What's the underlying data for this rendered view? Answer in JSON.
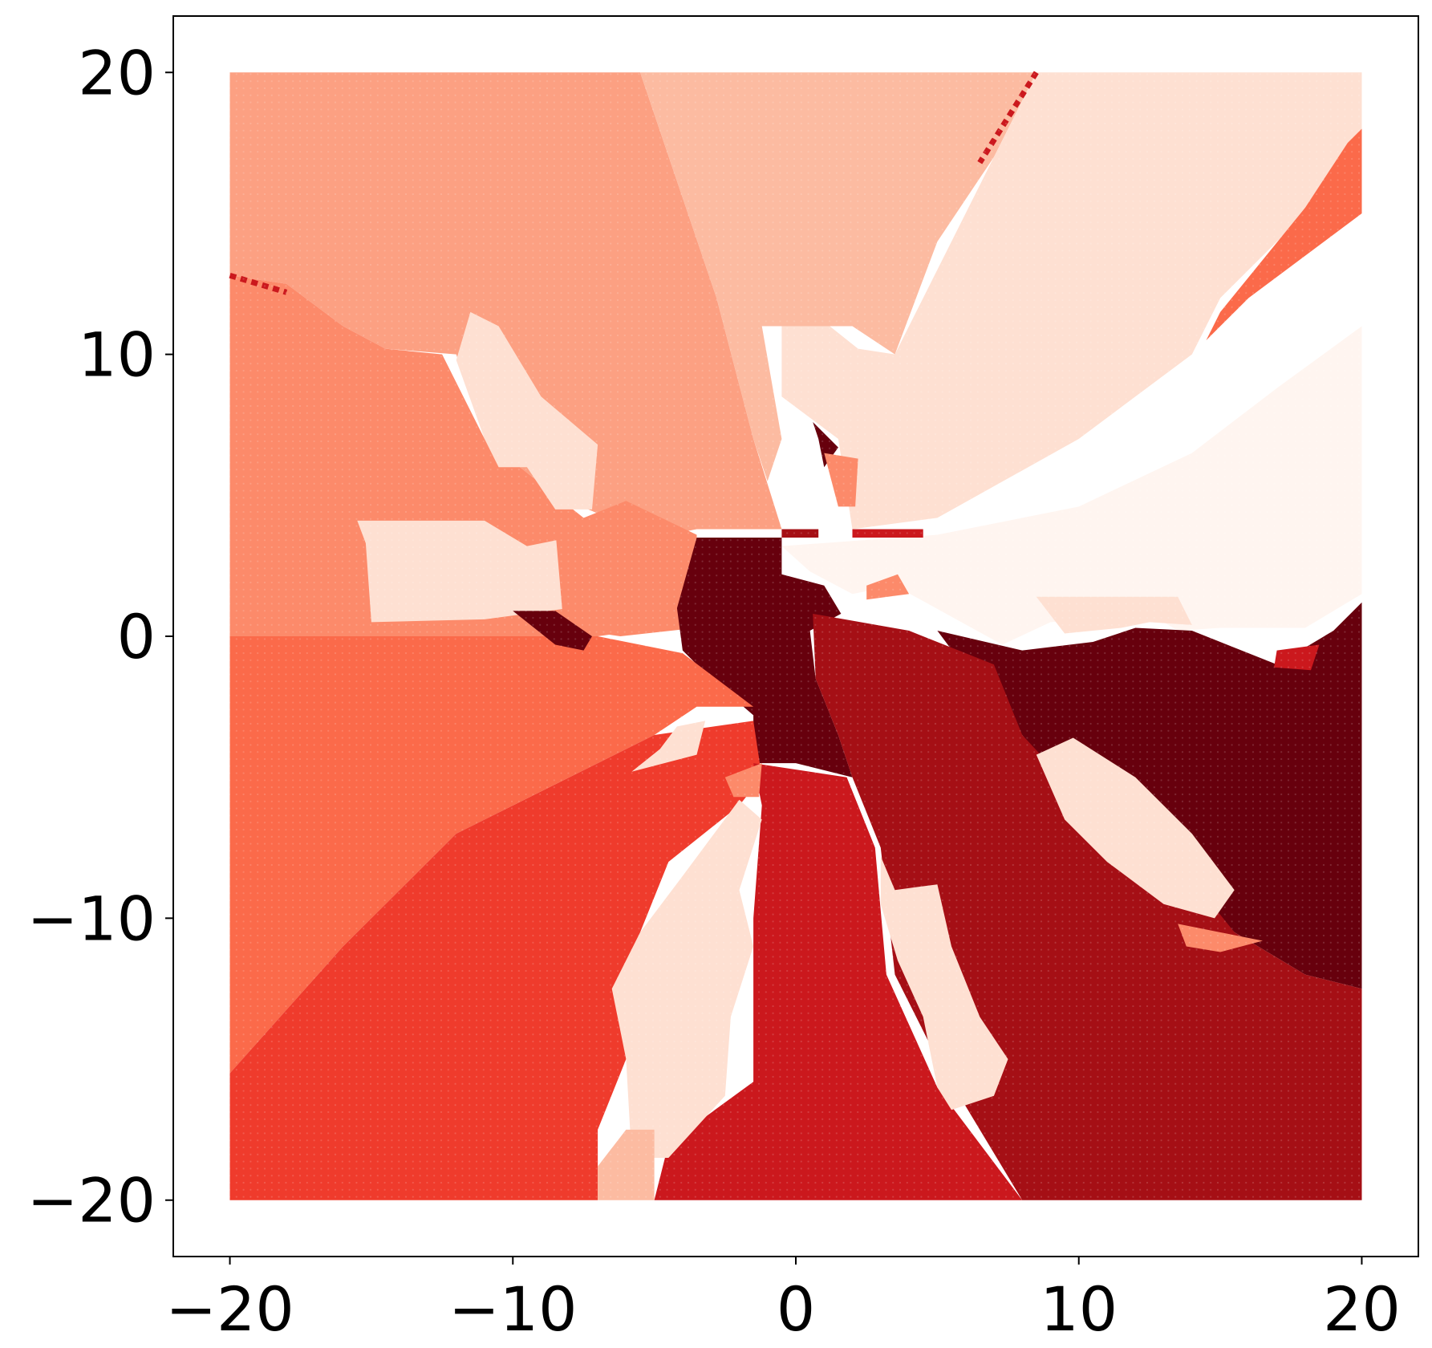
{
  "chart_data": {
    "type": "scatter",
    "title": "",
    "xlabel": "",
    "ylabel": "",
    "xlim": [
      -22,
      22
    ],
    "ylim": [
      -22,
      22
    ],
    "grid": false,
    "colormap": "Reds",
    "x_ticks": [
      {
        "value": -20,
        "label": "−20"
      },
      {
        "value": -10,
        "label": "−10"
      },
      {
        "value": 0,
        "label": "0"
      },
      {
        "value": 10,
        "label": "10"
      },
      {
        "value": 20,
        "label": "20"
      }
    ],
    "y_ticks": [
      {
        "value": 20,
        "label": "20"
      },
      {
        "value": 10,
        "label": "10"
      },
      {
        "value": 0,
        "label": "0"
      },
      {
        "value": -10,
        "label": "−10"
      },
      {
        "value": -20,
        "label": "−20"
      }
    ],
    "points_grid": {
      "x_range": [
        -20,
        20
      ],
      "y_range": [
        -20,
        20
      ]
    },
    "regions": [
      {
        "color": "#fca082",
        "polygon": [
          [
            -20,
            20
          ],
          [
            -5.5,
            20
          ],
          [
            -2.8,
            12
          ],
          [
            -1.5,
            7
          ],
          [
            -0.5,
            3.8
          ],
          [
            -3.5,
            3.8
          ],
          [
            -5,
            3.5
          ],
          [
            -8.5,
            5
          ],
          [
            -11,
            7
          ],
          [
            -12,
            10
          ],
          [
            -14.5,
            10.2
          ],
          [
            -16,
            11
          ],
          [
            -18,
            12.5
          ],
          [
            -20,
            12.8
          ]
        ]
      },
      {
        "color": "#fcbba1",
        "polygon": [
          [
            -5.5,
            20
          ],
          [
            8.5,
            20
          ],
          [
            7,
            17
          ],
          [
            5,
            14
          ],
          [
            3.5,
            10
          ],
          [
            2,
            11
          ],
          [
            -1.2,
            11
          ],
          [
            -0.5,
            7
          ],
          [
            -1,
            5.5
          ],
          [
            -1.5,
            7
          ],
          [
            -2.8,
            12
          ]
        ]
      },
      {
        "color": "#fee0d2",
        "polygon": [
          [
            8.5,
            20
          ],
          [
            20,
            20
          ],
          [
            20,
            18
          ],
          [
            18,
            15
          ],
          [
            15,
            12
          ],
          [
            14,
            10
          ],
          [
            10,
            7
          ],
          [
            5,
            4.2
          ],
          [
            2,
            3.8
          ],
          [
            1.5,
            7
          ],
          [
            -0.5,
            8.5
          ],
          [
            -0.5,
            11
          ],
          [
            1.2,
            11
          ],
          [
            2.2,
            10.2
          ],
          [
            3.5,
            10
          ]
        ]
      },
      {
        "color": "#fc8a6a",
        "polygon": [
          [
            -20,
            12.8
          ],
          [
            -18,
            12.5
          ],
          [
            -16,
            11
          ],
          [
            -14.5,
            10.2
          ],
          [
            -12.5,
            10
          ],
          [
            -11,
            7
          ],
          [
            -8.5,
            5
          ],
          [
            -6,
            3
          ],
          [
            -3.5,
            2.5
          ],
          [
            -3.5,
            0.5
          ],
          [
            -7,
            0
          ],
          [
            -20,
            0
          ]
        ]
      },
      {
        "color": "#fb6a4a",
        "polygon": [
          [
            20,
            18
          ],
          [
            20,
            15
          ],
          [
            16,
            12
          ],
          [
            14.5,
            10.5
          ],
          [
            15,
            11.5
          ],
          [
            18,
            15.2
          ],
          [
            19.5,
            17.5
          ]
        ]
      },
      {
        "color": "#fee0d2",
        "polygon": [
          [
            -11.5,
            11.5
          ],
          [
            -10.5,
            11
          ],
          [
            -9,
            8.5
          ],
          [
            -7,
            6.8
          ],
          [
            -7.2,
            4.5
          ],
          [
            -8.5,
            4.5
          ],
          [
            -9.5,
            6
          ],
          [
            -10.5,
            6
          ],
          [
            -11,
            7
          ],
          [
            -12,
            9.8
          ]
        ]
      },
      {
        "color": "#fee0d2",
        "polygon": [
          [
            -15.5,
            4.1
          ],
          [
            -11,
            4.1
          ],
          [
            -9.5,
            3.2
          ],
          [
            -8,
            3.5
          ],
          [
            -6.5,
            3.3
          ],
          [
            -6.5,
            1
          ],
          [
            -8,
            1
          ],
          [
            -11,
            0.6
          ],
          [
            -15,
            0.5
          ],
          [
            -15.2,
            3.3
          ]
        ]
      },
      {
        "color": "#fc8a6a",
        "polygon": [
          [
            -8.5,
            3.8
          ],
          [
            -6,
            4.8
          ],
          [
            -3.5,
            3.6
          ],
          [
            -3.5,
            0.3
          ],
          [
            -6.2,
            0
          ],
          [
            -8.2,
            0.3
          ]
        ]
      },
      {
        "color": "#fff5f0",
        "polygon": [
          [
            -0.5,
            3.2
          ],
          [
            5,
            3.6
          ],
          [
            10,
            4.6
          ],
          [
            14,
            6.5
          ],
          [
            17,
            8.8
          ],
          [
            20,
            11
          ],
          [
            20,
            1.5
          ],
          [
            18,
            0.3
          ],
          [
            15,
            0.3
          ],
          [
            13.5,
            0.2
          ],
          [
            12.5,
            0.8
          ],
          [
            9,
            0.5
          ],
          [
            7.3,
            -0.3
          ],
          [
            3.5,
            1.8
          ],
          [
            2,
            1.5
          ],
          [
            0.5,
            2.3
          ]
        ]
      },
      {
        "color": "#fee0d2",
        "polygon": [
          [
            8.5,
            1.4
          ],
          [
            13.5,
            1.4
          ],
          [
            14,
            0.4
          ],
          [
            12.5,
            0.5
          ],
          [
            11.5,
            0.3
          ],
          [
            9.5,
            0.1
          ]
        ]
      },
      {
        "color": "#67000d",
        "polygon": [
          [
            -3.5,
            3.5
          ],
          [
            -0.5,
            3.5
          ],
          [
            -0.5,
            2.2
          ],
          [
            1,
            1.8
          ],
          [
            1.6,
            0.8
          ],
          [
            0.5,
            0.2
          ],
          [
            0.7,
            -1.5
          ],
          [
            1.5,
            -3.5
          ],
          [
            2,
            -5
          ],
          [
            0,
            -4.5
          ],
          [
            -1.5,
            -4.5
          ],
          [
            -1.5,
            -2.8
          ],
          [
            -3,
            -1.5
          ],
          [
            -4,
            -0.5
          ],
          [
            -4.2,
            1
          ]
        ]
      },
      {
        "color": "#67000d",
        "polygon": [
          [
            5,
            0.2
          ],
          [
            8,
            -0.5
          ],
          [
            10.5,
            -0.2
          ],
          [
            12,
            0.3
          ],
          [
            14,
            0.2
          ],
          [
            17,
            -1
          ],
          [
            19,
            0.2
          ],
          [
            20,
            1.2
          ],
          [
            20,
            -12.5
          ],
          [
            18,
            -12
          ],
          [
            15.5,
            -10.5
          ],
          [
            13,
            -8
          ],
          [
            10,
            -6
          ],
          [
            8,
            -3.5
          ],
          [
            7,
            -2.5
          ]
        ]
      },
      {
        "color": "#a50f15",
        "polygon": [
          [
            0.6,
            0.8
          ],
          [
            4,
            0.2
          ],
          [
            7,
            -1
          ],
          [
            8,
            -3.5
          ],
          [
            10.5,
            -6.2
          ],
          [
            13.5,
            -8
          ],
          [
            15.5,
            -10.5
          ],
          [
            18,
            -12
          ],
          [
            20,
            -12.5
          ],
          [
            20,
            -20
          ],
          [
            8,
            -20
          ],
          [
            5,
            -15
          ],
          [
            3.5,
            -12
          ],
          [
            3,
            -7.5
          ],
          [
            2,
            -5
          ],
          [
            1.5,
            -3.5
          ],
          [
            0.7,
            -1.5
          ]
        ]
      },
      {
        "color": "#fb6a4a",
        "polygon": [
          [
            -20,
            0
          ],
          [
            -7,
            0
          ],
          [
            -4,
            -0.6
          ],
          [
            -1.5,
            -2.5
          ],
          [
            -3.5,
            -2.5
          ],
          [
            -5,
            -3.5
          ],
          [
            -8,
            -5
          ],
          [
            -12,
            -7
          ],
          [
            -16,
            -11
          ],
          [
            -20,
            -15.5
          ]
        ]
      },
      {
        "color": "#ef3b2c",
        "polygon": [
          [
            -20,
            -15.5
          ],
          [
            -16,
            -11
          ],
          [
            -12,
            -7
          ],
          [
            -8,
            -5
          ],
          [
            -5,
            -3.5
          ],
          [
            -1.5,
            -3
          ],
          [
            -1.2,
            -5
          ],
          [
            -2,
            -6
          ],
          [
            -4.5,
            -8
          ],
          [
            -5.5,
            -10.5
          ],
          [
            -6,
            -15
          ],
          [
            -7,
            -17.5
          ],
          [
            -7,
            -20
          ],
          [
            -20,
            -20
          ]
        ]
      },
      {
        "color": "#cb181d",
        "polygon": [
          [
            -1.5,
            -4.5
          ],
          [
            1.8,
            -5
          ],
          [
            2.8,
            -7.5
          ],
          [
            3.2,
            -12
          ],
          [
            5,
            -16
          ],
          [
            8,
            -20
          ],
          [
            -5,
            -20
          ],
          [
            -4.5,
            -18
          ],
          [
            -1.5,
            -15.8
          ],
          [
            -1.5,
            -10
          ],
          [
            -1.2,
            -6
          ]
        ]
      },
      {
        "color": "#fee0d2",
        "polygon": [
          [
            -4.2,
            -3.2
          ],
          [
            -3.2,
            -3
          ],
          [
            -3.5,
            -4.2
          ],
          [
            -5.8,
            -4.8
          ],
          [
            -4.8,
            -4
          ]
        ]
      },
      {
        "color": "#fee0d2",
        "polygon": [
          [
            -2,
            -5.8
          ],
          [
            -1.2,
            -6.5
          ],
          [
            -2,
            -9
          ],
          [
            -1.5,
            -11
          ],
          [
            -2.3,
            -13.5
          ],
          [
            -2.5,
            -16.3
          ],
          [
            -4.5,
            -18.5
          ],
          [
            -5.8,
            -18.5
          ],
          [
            -6,
            -15
          ],
          [
            -6.5,
            -12.5
          ],
          [
            -5.5,
            -10.5
          ],
          [
            -4,
            -8.5
          ]
        ]
      },
      {
        "color": "#fee0d2",
        "polygon": [
          [
            3,
            -7.8
          ],
          [
            3.5,
            -9
          ],
          [
            5,
            -8.8
          ],
          [
            5.5,
            -11
          ],
          [
            6.5,
            -13.5
          ],
          [
            7.5,
            -15
          ],
          [
            7,
            -16.3
          ],
          [
            5.5,
            -16.8
          ],
          [
            5,
            -16
          ],
          [
            4.5,
            -13.5
          ],
          [
            3.6,
            -11.5
          ],
          [
            3,
            -9.5
          ]
        ]
      },
      {
        "color": "#fee0d2",
        "polygon": [
          [
            8.5,
            -4.2
          ],
          [
            9.8,
            -3.6
          ],
          [
            12,
            -5
          ],
          [
            14,
            -7
          ],
          [
            15.5,
            -9
          ],
          [
            14.8,
            -10
          ],
          [
            13,
            -9.5
          ],
          [
            11,
            -8
          ],
          [
            9.5,
            -6.5
          ]
        ]
      },
      {
        "color": "#fcbba1",
        "polygon": [
          [
            -7,
            -20
          ],
          [
            -5,
            -20
          ],
          [
            -5,
            -17.5
          ],
          [
            -6,
            -17.5
          ],
          [
            -7,
            -18.8
          ]
        ]
      },
      {
        "color": "#67000d",
        "polygon": [
          [
            -10,
            0.9
          ],
          [
            -8.5,
            0.9
          ],
          [
            -7.2,
            0
          ],
          [
            -7.5,
            -0.5
          ],
          [
            -8.5,
            -0.3
          ],
          [
            -9.5,
            0.5
          ]
        ]
      },
      {
        "color": "#67000d",
        "polygon": [
          [
            0.6,
            7.6
          ],
          [
            1.5,
            6.7
          ],
          [
            1,
            6
          ],
          [
            0.8,
            7
          ]
        ]
      },
      {
        "color": "#fc8a6a",
        "polygon": [
          [
            1,
            6.5
          ],
          [
            2.2,
            6.3
          ],
          [
            2.1,
            4.6
          ],
          [
            1.5,
            4.6
          ]
        ]
      },
      {
        "color": "#fc8a6a",
        "polygon": [
          [
            -1.2,
            -4.5
          ],
          [
            -1.3,
            -5.7
          ],
          [
            -2.2,
            -5.7
          ],
          [
            -2.5,
            -5
          ]
        ]
      },
      {
        "color": "#fc8a6a",
        "polygon": [
          [
            13.5,
            -10.2
          ],
          [
            16.5,
            -10.8
          ],
          [
            15,
            -11.2
          ],
          [
            13.8,
            -11
          ]
        ]
      },
      {
        "color": "#a50f15",
        "polygon": [
          [
            -0.5,
            3.8
          ],
          [
            0.8,
            3.8
          ],
          [
            0.8,
            3.5
          ],
          [
            -0.5,
            3.5
          ]
        ]
      },
      {
        "color": "#cb181d",
        "polygon": [
          [
            2,
            3.8
          ],
          [
            4.5,
            3.8
          ],
          [
            4.5,
            3.5
          ],
          [
            2,
            3.5
          ]
        ]
      },
      {
        "color": "#cb181d",
        "polygon": [
          [
            17,
            -0.5
          ],
          [
            18.5,
            -0.3
          ],
          [
            18.2,
            -1.2
          ],
          [
            16.9,
            -1.1
          ]
        ]
      },
      {
        "color": "#fc8a6a",
        "polygon": [
          [
            2.5,
            1.8
          ],
          [
            3.6,
            2.2
          ],
          [
            4,
            1.5
          ],
          [
            2.5,
            1.3
          ]
        ]
      }
    ],
    "line_marks": [
      {
        "color": "#cb181d",
        "points": [
          [
            -20,
            12.8
          ],
          [
            -18,
            12.2
          ]
        ]
      },
      {
        "color": "#cb181d",
        "points": [
          [
            8.5,
            20
          ],
          [
            6.5,
            16.8
          ]
        ]
      }
    ]
  }
}
